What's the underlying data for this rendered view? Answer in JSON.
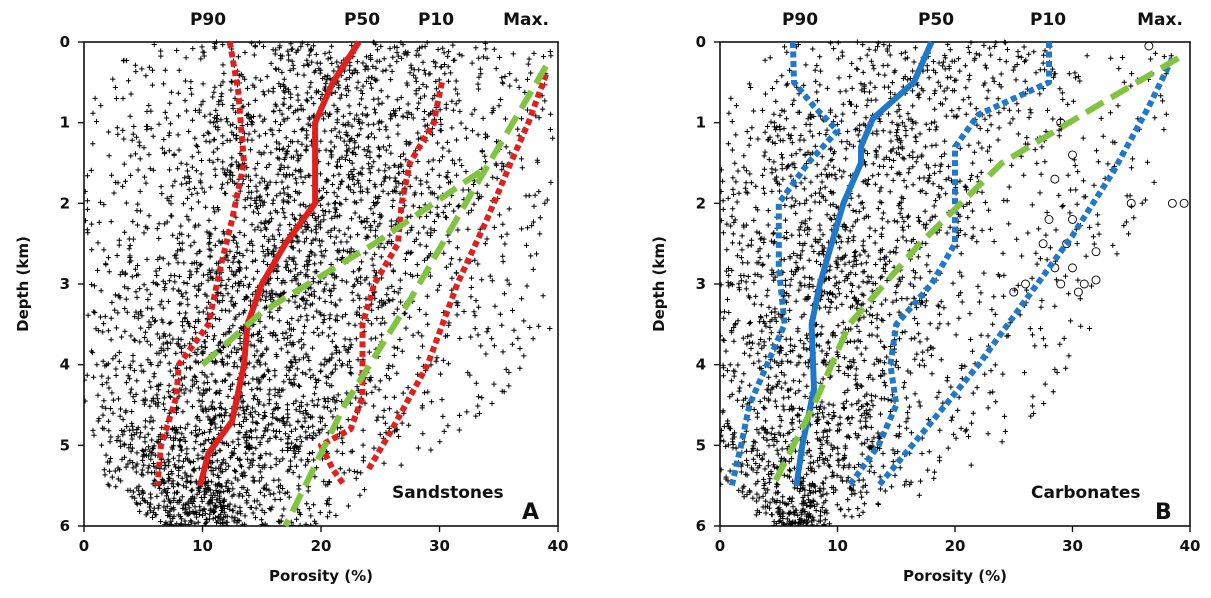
{
  "chart_data": [
    {
      "type": "scatter",
      "panel_letter": "A",
      "rock_type": "Sandstones",
      "xlabel": "Porosity (%)",
      "ylabel": "Depth (km)",
      "xlim": [
        0,
        40
      ],
      "ylim": [
        6,
        0
      ],
      "x_ticks": [
        "0",
        "10",
        "20",
        "30",
        "40"
      ],
      "y_ticks": [
        "0",
        "1",
        "2",
        "3",
        "4",
        "5",
        "6"
      ],
      "percentile_labels": [
        "P90",
        "P50",
        "P10",
        "Max."
      ],
      "scatter_cloud": [
        {
          "depth": 0.0,
          "porosity_min": 2,
          "porosity_max": 40
        },
        {
          "depth": 0.5,
          "porosity_min": 1,
          "porosity_max": 39
        },
        {
          "depth": 1.5,
          "porosity_min": 0,
          "porosity_max": 40
        },
        {
          "depth": 2.5,
          "porosity_min": 0,
          "porosity_max": 39
        },
        {
          "depth": 3.5,
          "porosity_min": 0,
          "porosity_max": 40
        },
        {
          "depth": 4.5,
          "porosity_min": 0,
          "porosity_max": 35
        },
        {
          "depth": 5.5,
          "porosity_min": 2,
          "porosity_max": 25
        },
        {
          "depth": 6.0,
          "porosity_min": 6,
          "porosity_max": 20
        }
      ],
      "series": [
        {
          "name": "P90",
          "style": "dotted",
          "color": "#e0201c",
          "points": [
            [
              12.3,
              0
            ],
            [
              13,
              0.6
            ],
            [
              13.5,
              1.5
            ],
            [
              12.5,
              2.2
            ],
            [
              11.5,
              2.8
            ],
            [
              10.5,
              3.5
            ],
            [
              8,
              4.0
            ],
            [
              7.8,
              4.4
            ],
            [
              6.5,
              5.0
            ],
            [
              6.2,
              5.5
            ]
          ]
        },
        {
          "name": "P50",
          "style": "solid",
          "color": "#e0201c",
          "points": [
            [
              23.2,
              0
            ],
            [
              21,
              0.5
            ],
            [
              19.5,
              1.0
            ],
            [
              19.5,
              2.0
            ],
            [
              17,
              2.5
            ],
            [
              15,
              3.0
            ],
            [
              13.8,
              3.5
            ],
            [
              13.5,
              4.0
            ],
            [
              12.5,
              4.7
            ],
            [
              10.5,
              5.1
            ],
            [
              9.8,
              5.5
            ]
          ]
        },
        {
          "name": "P10",
          "style": "dotted",
          "color": "#e0201c",
          "points": [
            [
              30.2,
              0.5
            ],
            [
              29.5,
              1.0
            ],
            [
              27.5,
              1.5
            ],
            [
              26.8,
              2.0
            ],
            [
              26.5,
              2.5
            ],
            [
              24.5,
              3.0
            ],
            [
              23.5,
              3.5
            ],
            [
              23.5,
              4.4
            ],
            [
              22.5,
              4.8
            ],
            [
              20,
              5.0
            ],
            [
              21,
              5.3
            ],
            [
              22,
              5.5
            ]
          ]
        },
        {
          "name": "Max.",
          "style": "dotted",
          "color": "#e0201c",
          "points": [
            [
              39,
              0.4
            ],
            [
              37.5,
              1.0
            ],
            [
              36,
              1.5
            ],
            [
              34,
              2.2
            ],
            [
              31.5,
              3.0
            ],
            [
              29,
              4.0
            ],
            [
              26,
              4.8
            ],
            [
              24,
              5.3
            ]
          ]
        },
        {
          "style": "dashed",
          "color": "#82c341",
          "points": [
            [
              10,
              4.0
            ],
            [
              15,
              3.35
            ],
            [
              24.5,
              2.5
            ],
            [
              33.5,
              1.6
            ]
          ]
        },
        {
          "style": "dashed",
          "color": "#82c341",
          "points": [
            [
              39,
              0.3
            ],
            [
              33,
              1.8
            ],
            [
              27.5,
              3.2
            ],
            [
              22,
              4.5
            ],
            [
              17,
              6.0
            ]
          ]
        }
      ]
    },
    {
      "type": "scatter",
      "panel_letter": "B",
      "rock_type": "Carbonates",
      "xlabel": "Porosity (%)",
      "ylabel": "Depth (km)",
      "xlim": [
        0,
        40
      ],
      "ylim": [
        6,
        0
      ],
      "x_ticks": [
        "0",
        "10",
        "20",
        "30",
        "40"
      ],
      "y_ticks": [
        "0",
        "1",
        "2",
        "3",
        "4",
        "5",
        "6"
      ],
      "percentile_labels": [
        "P90",
        "P50",
        "P10",
        "Max."
      ],
      "scatter_cloud": [
        {
          "depth": 0.0,
          "porosity_min": 3,
          "porosity_max": 39
        },
        {
          "depth": 0.5,
          "porosity_min": 1,
          "porosity_max": 38
        },
        {
          "depth": 1.5,
          "porosity_min": 0,
          "porosity_max": 38
        },
        {
          "depth": 2.5,
          "porosity_min": 0,
          "porosity_max": 35
        },
        {
          "depth": 3.5,
          "porosity_min": 0,
          "porosity_max": 32
        },
        {
          "depth": 4.5,
          "porosity_min": 0,
          "porosity_max": 28
        },
        {
          "depth": 5.5,
          "porosity_min": 0,
          "porosity_max": 20
        },
        {
          "depth": 6.0,
          "porosity_min": 4,
          "porosity_max": 9
        }
      ],
      "open_circle_points": [
        [
          36.5,
          0.05
        ],
        [
          29,
          1.0
        ],
        [
          30,
          1.4
        ],
        [
          28.5,
          1.7
        ],
        [
          35,
          2.0
        ],
        [
          38.5,
          2.0
        ],
        [
          39.5,
          2.0
        ],
        [
          28,
          2.2
        ],
        [
          30,
          2.2
        ],
        [
          27.5,
          2.5
        ],
        [
          29.5,
          2.5
        ],
        [
          32,
          2.6
        ],
        [
          28.5,
          2.8
        ],
        [
          30,
          2.8
        ],
        [
          29,
          3.0
        ],
        [
          31,
          3.0
        ],
        [
          32,
          2.95
        ],
        [
          30.5,
          3.1
        ],
        [
          26,
          3.0
        ],
        [
          25,
          3.1
        ]
      ],
      "series": [
        {
          "name": "P90",
          "style": "dotted",
          "color": "#1f78c8",
          "points": [
            [
              6.2,
              0
            ],
            [
              6.3,
              0.5
            ],
            [
              8,
              0.8
            ],
            [
              10,
              1.1
            ],
            [
              7.5,
              1.5
            ],
            [
              5,
              2.0
            ],
            [
              5,
              2.8
            ],
            [
              5.5,
              3.5
            ],
            [
              4,
              4.0
            ],
            [
              2.5,
              4.5
            ],
            [
              1.8,
              5.0
            ],
            [
              1,
              5.5
            ]
          ]
        },
        {
          "name": "P50",
          "style": "solid",
          "color": "#1f78c8",
          "points": [
            [
              18,
              0
            ],
            [
              16.5,
              0.5
            ],
            [
              13,
              0.95
            ],
            [
              12,
              1.3
            ],
            [
              12,
              1.5
            ],
            [
              10.5,
              2.0
            ],
            [
              9.5,
              2.5
            ],
            [
              8.5,
              3.0
            ],
            [
              7.8,
              3.5
            ],
            [
              8,
              4.3
            ],
            [
              7,
              5.0
            ],
            [
              6.5,
              5.5
            ]
          ]
        },
        {
          "name": "P10",
          "style": "dotted",
          "color": "#1f78c8",
          "points": [
            [
              28,
              0
            ],
            [
              28,
              0.5
            ],
            [
              22,
              0.9
            ],
            [
              20,
              1.3
            ],
            [
              20,
              2.0
            ],
            [
              20,
              2.5
            ],
            [
              18,
              3.0
            ],
            [
              15,
              3.5
            ],
            [
              14.5,
              4.0
            ],
            [
              15,
              4.5
            ],
            [
              13.5,
              5.0
            ],
            [
              12,
              5.3
            ],
            [
              11,
              5.5
            ]
          ]
        },
        {
          "name": "Max.",
          "style": "dotted",
          "color": "#1f78c8",
          "points": [
            [
              38.5,
              0.2
            ],
            [
              36.5,
              0.8
            ],
            [
              33.5,
              1.6
            ],
            [
              30,
              2.4
            ],
            [
              27,
              3.0
            ],
            [
              22,
              4.0
            ],
            [
              17.5,
              4.8
            ],
            [
              13.5,
              5.5
            ]
          ]
        },
        {
          "style": "dashed",
          "color": "#82c341",
          "points": [
            [
              39,
              0.2
            ],
            [
              32,
              0.8
            ],
            [
              24,
              1.5
            ],
            [
              17,
              2.5
            ],
            [
              11,
              3.5
            ],
            [
              8,
              4.5
            ],
            [
              4.5,
              5.5
            ]
          ]
        }
      ]
    }
  ]
}
